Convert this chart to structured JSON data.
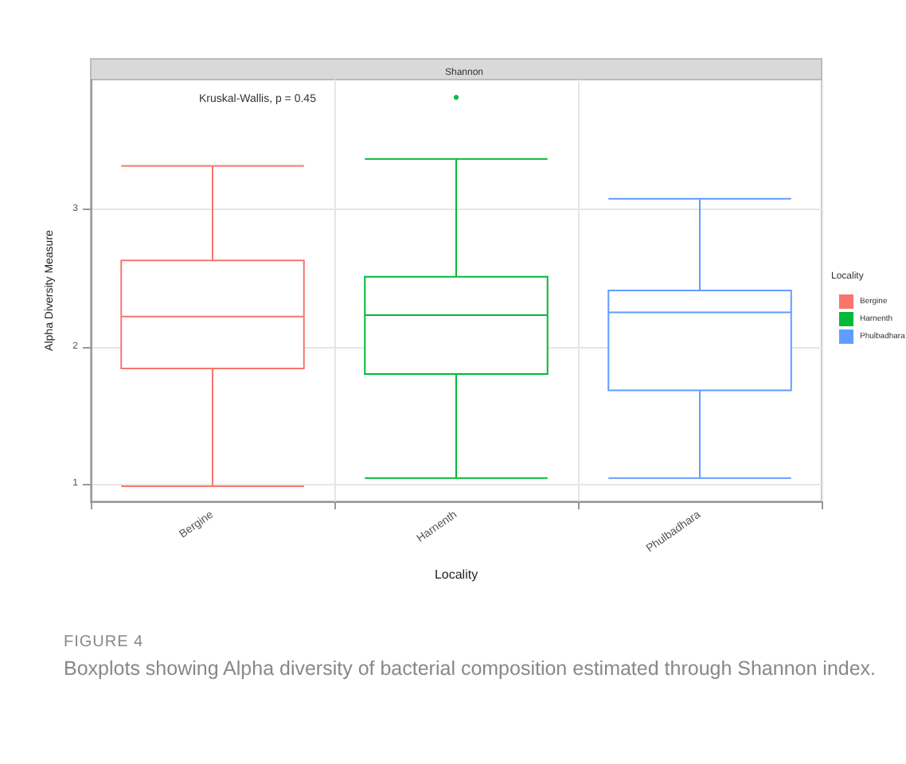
{
  "chart_data": {
    "type": "box",
    "title": "Shannon",
    "xlabel": "Locality",
    "ylabel": "Alpha Diversity Measure",
    "legend_title": "Locality",
    "categories": [
      "Bergine",
      "Harnenth",
      "Phulbadhara"
    ],
    "series": [
      {
        "name": "Bergine",
        "color": "#f8766d",
        "boxes": [
          {
            "low": 0.98,
            "q1": 1.84,
            "median": 2.22,
            "q3": 2.63,
            "high": 3.32
          },
          null,
          null
        ]
      },
      {
        "name": "Harnenth",
        "color": "#00ba38",
        "boxes": [
          null,
          {
            "low": 1.04,
            "q1": 1.8,
            "median": 2.23,
            "q3": 2.51,
            "high": 3.37,
            "outliers": [
              3.82,
              3.82
            ]
          },
          null
        ]
      },
      {
        "name": "Phulbadhara",
        "color": "#619cff",
        "boxes": [
          null,
          null,
          {
            "low": 1.04,
            "q1": 1.68,
            "median": 2.25,
            "q3": 2.41,
            "high": 3.08
          }
        ]
      }
    ],
    "ylim": [
      0.87,
      3.95
    ],
    "yticks": [
      1,
      2,
      3
    ],
    "grid": true,
    "legend": "right",
    "annotations": [
      {
        "text": "Kruskal-Wallis, p = 0.45"
      },
      "FIGURE 4",
      "Boxplots showing Alpha diversity of bacterial composition estimated through Shannon index."
    ]
  }
}
